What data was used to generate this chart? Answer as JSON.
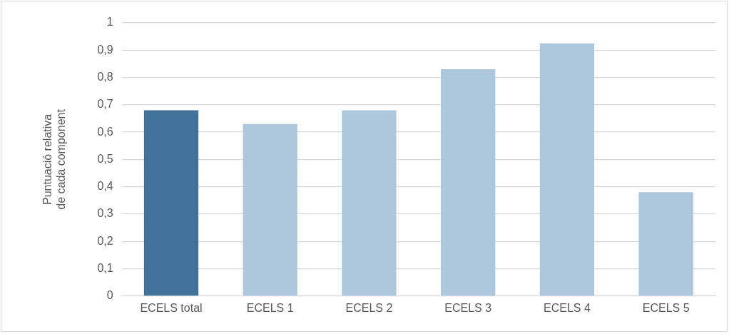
{
  "chart_data": {
    "type": "bar",
    "ylabel": "Puntuació relativa de cada component",
    "categories": [
      "ECELS total",
      "ECELS 1",
      "ECELS 2",
      "ECELS 3",
      "ECELS 4",
      "ECELS 5"
    ],
    "values": [
      0.68,
      0.63,
      0.68,
      0.83,
      0.925,
      0.38
    ],
    "colors": [
      "#41729a",
      "#adc8dd",
      "#adc8dd",
      "#adc8dd",
      "#adc8dd",
      "#adc8dd"
    ],
    "ylim": [
      0,
      1
    ],
    "yticks": [
      {
        "value": 0,
        "label": "0"
      },
      {
        "value": 0.1,
        "label": "0,1"
      },
      {
        "value": 0.2,
        "label": "0,2"
      },
      {
        "value": 0.3,
        "label": "0,3"
      },
      {
        "value": 0.4,
        "label": "0,4"
      },
      {
        "value": 0.5,
        "label": "0,5"
      },
      {
        "value": 0.6,
        "label": "0,6"
      },
      {
        "value": 0.7,
        "label": "0,7"
      },
      {
        "value": 0.8,
        "label": "0,8"
      },
      {
        "value": 0.9,
        "label": "0,9"
      },
      {
        "value": 1,
        "label": "1"
      }
    ],
    "grid": "y",
    "legend": false
  }
}
